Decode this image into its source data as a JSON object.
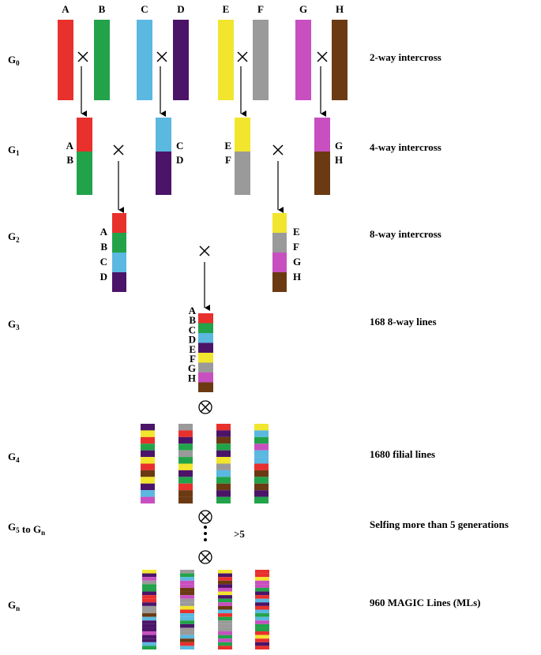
{
  "parents": [
    "A",
    "B",
    "C",
    "D",
    "E",
    "F",
    "G",
    "H"
  ],
  "generations": [
    {
      "label": [
        {
          "text": "G",
          "sub": "0"
        }
      ],
      "description": "2-way intercross"
    },
    {
      "label": [
        {
          "text": "G",
          "sub": "1"
        }
      ],
      "description": "4-way intercross"
    },
    {
      "label": [
        {
          "text": "G",
          "sub": "2"
        }
      ],
      "description": "8-way intercross"
    },
    {
      "label": [
        {
          "text": "G",
          "sub": "3"
        }
      ],
      "description": "168 8-way lines"
    },
    {
      "label": [
        {
          "text": "G",
          "sub": "4"
        }
      ],
      "description": "1680 filial lines"
    },
    {
      "label": [
        {
          "text": "G",
          "sub": "5"
        },
        {
          "text": " to G",
          "sub": "n"
        }
      ],
      "description": "Selfing more than 5 generations"
    },
    {
      "label": [
        {
          "text": "G",
          "sub": "n"
        }
      ],
      "description": "960 MAGIC Lines (MLs)"
    }
  ],
  "g1_labels": [
    [
      "A",
      "B"
    ],
    [
      "C",
      "D"
    ],
    [
      "E",
      "F"
    ],
    [
      "G",
      "H"
    ]
  ],
  "g2_labels": [
    [
      "A",
      "B",
      "C",
      "D"
    ],
    [
      "E",
      "F",
      "G",
      "H"
    ]
  ],
  "g3_labels": [
    "A",
    "B",
    "C",
    "D",
    "E",
    "F",
    "G",
    "H"
  ],
  "selfing_note": ">5"
}
